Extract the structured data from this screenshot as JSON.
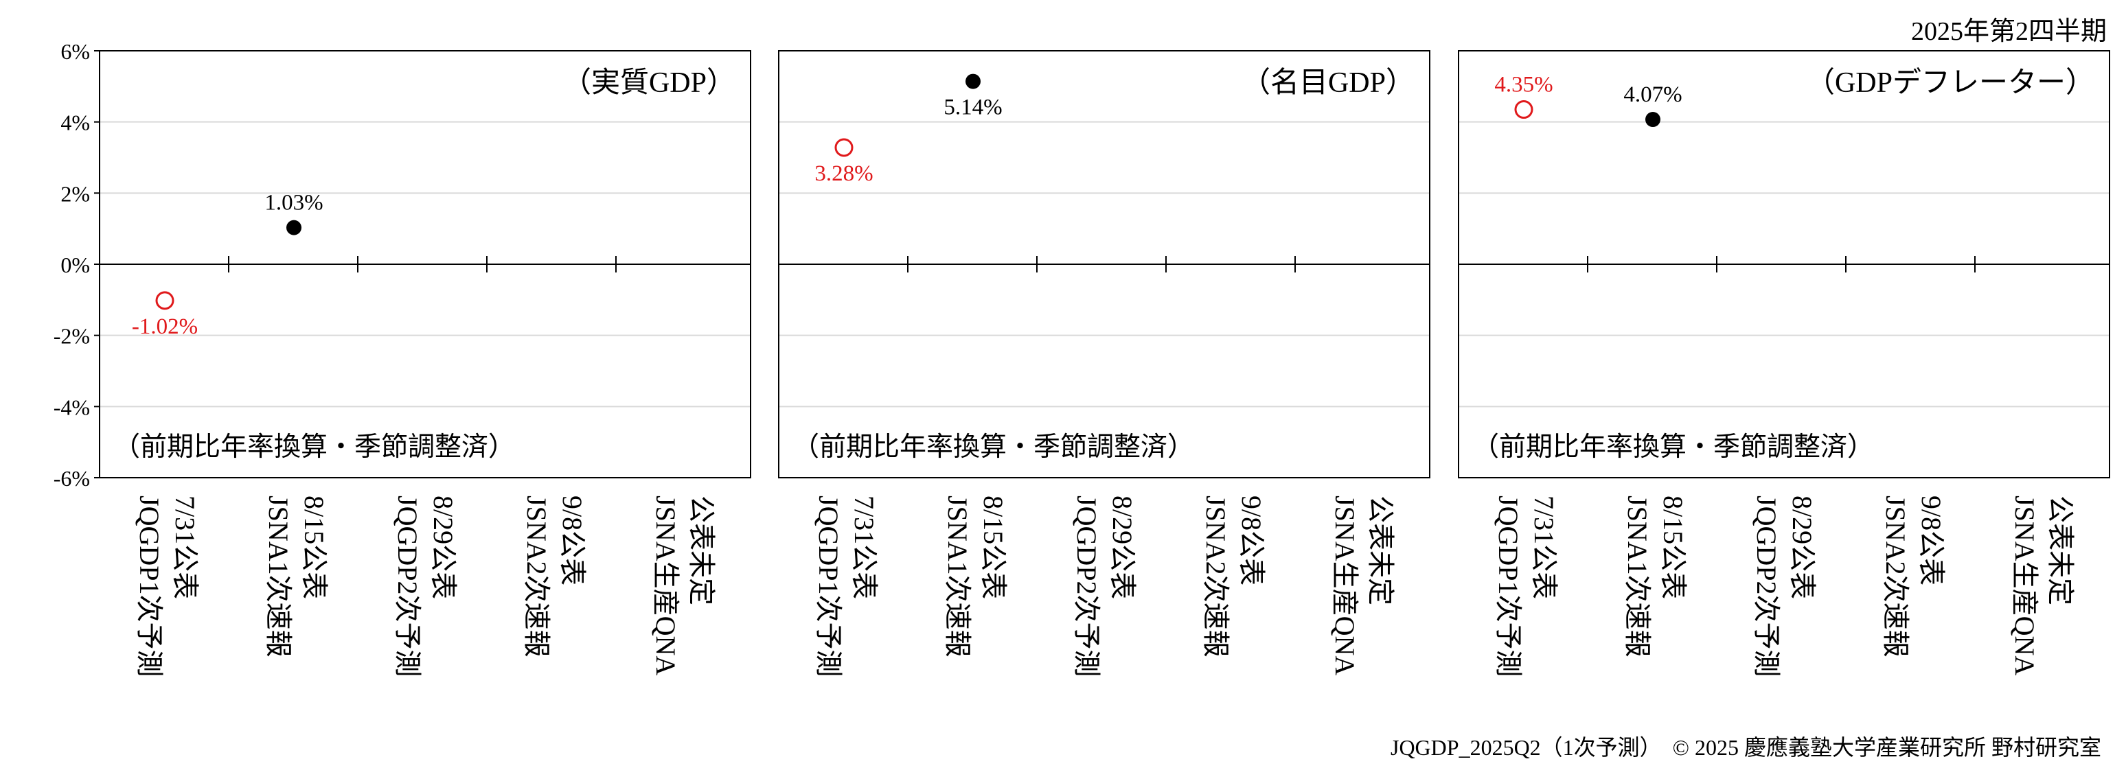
{
  "header": {
    "period": "2025年第2四半期"
  },
  "footer": {
    "credit": "JQGDP_2025Q2（1次予測）　© 2025 慶應義塾大学産業研究所 野村研究室"
  },
  "chart_data": [
    {
      "type": "scatter",
      "title": "（実質GDP）",
      "note": "（前期比年率換算・季節調整済）",
      "ylim": [
        -6,
        6
      ],
      "yticks": [
        "6%",
        "4%",
        "2%",
        "0%",
        "-2%",
        "-4%",
        "-6%"
      ],
      "categories": [
        [
          "7/31公表",
          "JQGDP1次予測"
        ],
        [
          "8/15公表",
          "JSNA1次速報"
        ],
        [
          "8/29公表",
          "JQGDP2次予測"
        ],
        [
          "9/8公表",
          "JSNA2次速報"
        ],
        [
          "公表未定",
          "JSNA生産QNA"
        ]
      ],
      "series": [
        {
          "marker": "open-circle",
          "color": "#e0191b",
          "points": [
            {
              "category": 0,
              "value": -1.02,
              "label": "-1.02%"
            }
          ]
        },
        {
          "marker": "filled-circle",
          "color": "#000000",
          "points": [
            {
              "category": 1,
              "value": 1.03,
              "label": "1.03%"
            }
          ]
        }
      ],
      "grid": true
    },
    {
      "type": "scatter",
      "title": "（名目GDP）",
      "note": "（前期比年率換算・季節調整済）",
      "ylim": [
        -6,
        6
      ],
      "categories": [
        [
          "7/31公表",
          "JQGDP1次予測"
        ],
        [
          "8/15公表",
          "JSNA1次速報"
        ],
        [
          "8/29公表",
          "JQGDP2次予測"
        ],
        [
          "9/8公表",
          "JSNA2次速報"
        ],
        [
          "公表未定",
          "JSNA生産QNA"
        ]
      ],
      "series": [
        {
          "marker": "open-circle",
          "color": "#e0191b",
          "points": [
            {
              "category": 0,
              "value": 3.28,
              "label": "3.28%"
            }
          ]
        },
        {
          "marker": "filled-circle",
          "color": "#000000",
          "points": [
            {
              "category": 1,
              "value": 5.14,
              "label": "5.14%"
            }
          ]
        }
      ],
      "grid": true
    },
    {
      "type": "scatter",
      "title": "（GDPデフレーター）",
      "note": "（前期比年率換算・季節調整済）",
      "ylim": [
        -6,
        6
      ],
      "categories": [
        [
          "7/31公表",
          "JQGDP1次予測"
        ],
        [
          "8/15公表",
          "JSNA1次速報"
        ],
        [
          "8/29公表",
          "JQGDP2次予測"
        ],
        [
          "9/8公表",
          "JSNA2次速報"
        ],
        [
          "公表未定",
          "JSNA生産QNA"
        ]
      ],
      "series": [
        {
          "marker": "open-circle",
          "color": "#e0191b",
          "points": [
            {
              "category": 0,
              "value": 4.35,
              "label": "4.35%"
            }
          ]
        },
        {
          "marker": "filled-circle",
          "color": "#000000",
          "points": [
            {
              "category": 1,
              "value": 4.07,
              "label": "4.07%"
            }
          ]
        }
      ],
      "grid": true
    }
  ]
}
